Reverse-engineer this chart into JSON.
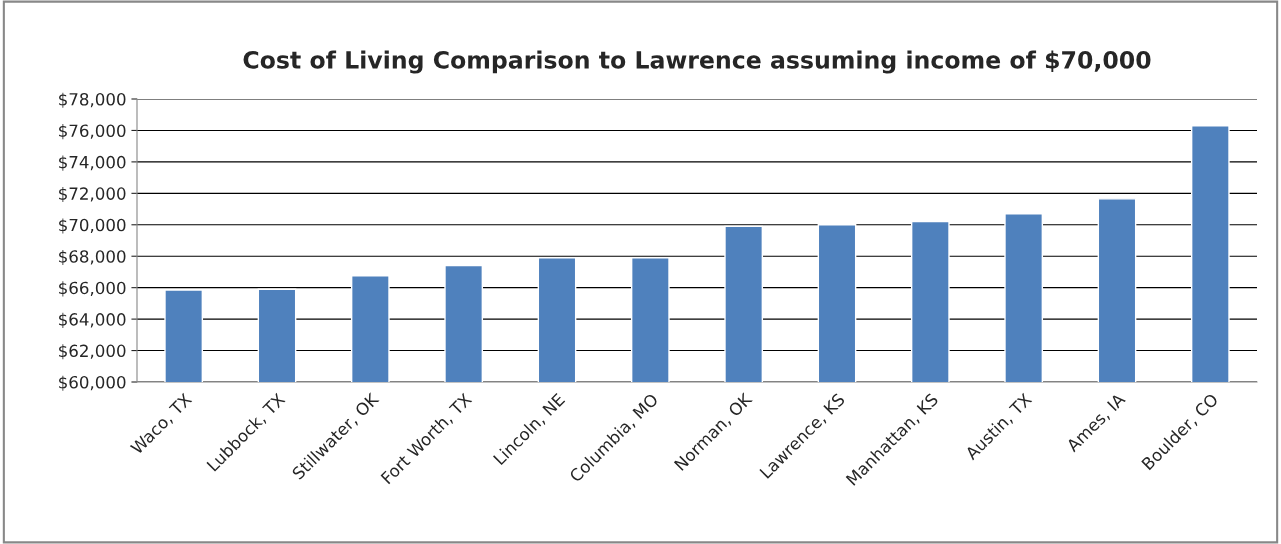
{
  "chart_data": {
    "type": "bar",
    "title": "Cost of Living Comparison to Lawrence assuming income of $70,000",
    "categories": [
      "Waco, TX",
      "Lubbock, TX",
      "Stillwater, OK",
      "Fort Worth, TX",
      "Lincoln, NE",
      "Columbia, MO",
      "Norman, OK",
      "Lawrence, KS",
      "Manhattan, KS",
      "Austin, TX",
      "Ames, IA",
      "Boulder, CO"
    ],
    "values": [
      65850,
      65900,
      66750,
      67400,
      67900,
      67900,
      69900,
      70000,
      70200,
      70700,
      71650,
      76300
    ],
    "color": "#4f81bd",
    "ylim": [
      60000,
      78000
    ],
    "yticks": [
      {
        "value": 60000,
        "label": "$60,000"
      },
      {
        "value": 62000,
        "label": "$62,000"
      },
      {
        "value": 64000,
        "label": "$64,000"
      },
      {
        "value": 66000,
        "label": "$66,000"
      },
      {
        "value": 68000,
        "label": "$68,000"
      },
      {
        "value": 70000,
        "label": "$70,000"
      },
      {
        "value": 72000,
        "label": "$72,000"
      },
      {
        "value": 74000,
        "label": "$74,000"
      },
      {
        "value": 76000,
        "label": "$76,000"
      },
      {
        "value": 78000,
        "label": "$78,000"
      }
    ],
    "grid": "y"
  }
}
